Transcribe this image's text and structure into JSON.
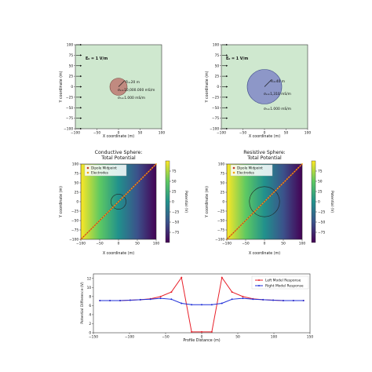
{
  "chart_data": [
    {
      "type": "model-diagram",
      "xlabel": "X coordinate (m)",
      "ylabel": "Y coordinate (m)",
      "xlim": [
        -100,
        100
      ],
      "ylim": [
        -100,
        100
      ],
      "xticks": [
        -100,
        -50,
        0,
        50,
        100
      ],
      "yticks": [
        -100,
        -75,
        -50,
        -25,
        0,
        25,
        50,
        75,
        100
      ],
      "background_color": "#cfe8cf",
      "sphere": {
        "center": [
          0,
          0
        ],
        "radius": 20,
        "color": "#c08a80"
      },
      "annotations": {
        "field": "E₀ = 1 V/m",
        "radius": "R=20 m",
        "sigma_sphere": "σₛ=10,000.000 mS/m",
        "sigma_host": "σₕ=1.000 mS/m"
      }
    },
    {
      "type": "model-diagram",
      "xlabel": "X coordinate (m)",
      "ylabel": "Y coordinate (m)",
      "xlim": [
        -100,
        100
      ],
      "ylim": [
        -100,
        100
      ],
      "xticks": [
        -100,
        -50,
        0,
        50,
        100
      ],
      "yticks": [
        -100,
        -75,
        -50,
        -25,
        0,
        25,
        50,
        75,
        100
      ],
      "background_color": "#cfe8cf",
      "sphere": {
        "center": [
          0,
          0
        ],
        "radius": 40,
        "color": "#8d97c8"
      },
      "annotations": {
        "field": "E₀ = 1 V/m",
        "radius": "R=40 m",
        "sigma_sphere": "σₛ=1,310 mS/m",
        "sigma_host": "σₕ=1.000 mS/m"
      }
    },
    {
      "type": "heatmap",
      "title": "Conductive Sphere:",
      "subtitle": "Total Potential",
      "xlabel": "X coordinate (m)",
      "ylabel": "Y coordinate (m)",
      "xlim": [
        -100,
        100
      ],
      "ylim": [
        -100,
        100
      ],
      "xticks": [
        -100,
        -50,
        0,
        50,
        100
      ],
      "yticks": [
        -100,
        -75,
        -50,
        -25,
        0,
        25,
        50,
        75,
        100
      ],
      "colorbar_label": "Potential (V)",
      "colorbar_ticks": [
        75,
        50,
        25,
        0,
        -25,
        -50,
        -75
      ],
      "colorbar_range": [
        -100,
        100
      ],
      "sphere_radius": 20,
      "legend": [
        "Dipole Midpoint",
        "Electrodes"
      ],
      "profile_line": [
        [
          -100,
          -100
        ],
        [
          100,
          100
        ]
      ]
    },
    {
      "type": "heatmap",
      "title": "Resistive Sphere:",
      "subtitle": "Total Potential",
      "xlabel": "X coordinate (m)",
      "ylabel": "Y coordinate (m)",
      "xlim": [
        -100,
        100
      ],
      "ylim": [
        -100,
        100
      ],
      "xticks": [
        -100,
        -50,
        0,
        50,
        100
      ],
      "yticks": [
        -100,
        -75,
        -50,
        -25,
        0,
        25,
        50,
        75,
        100
      ],
      "colorbar_label": "Potential (V)",
      "colorbar_ticks": [
        75,
        50,
        25,
        0,
        -25,
        -50,
        -75
      ],
      "colorbar_range": [
        -100,
        100
      ],
      "sphere_radius": 40,
      "legend": [
        "Dipole Midpoint",
        "Electrodes"
      ],
      "profile_line": [
        [
          -100,
          -100
        ],
        [
          100,
          100
        ]
      ]
    },
    {
      "type": "line",
      "xlabel": "Profile Distance (m)",
      "ylabel": "Potential Difference (V)",
      "xlim": [
        -150,
        150
      ],
      "ylim": [
        0,
        13
      ],
      "xticks": [
        -150,
        -100,
        -50,
        0,
        50,
        100,
        150
      ],
      "yticks": [
        0,
        2,
        4,
        6,
        8,
        10,
        12
      ],
      "legend_position": "top-right",
      "series": [
        {
          "name": "Left Model Response",
          "color": "#e8202a",
          "x": [
            -141,
            -127,
            -113,
            -99,
            -85,
            -71,
            -57,
            -42,
            -28,
            -14,
            0,
            14,
            28,
            42,
            57,
            71,
            85,
            99,
            113,
            127,
            141
          ],
          "values": [
            7.1,
            7.1,
            7.1,
            7.2,
            7.3,
            7.5,
            8.0,
            9.0,
            12.2,
            0.2,
            0.2,
            0.2,
            12.2,
            9.0,
            8.0,
            7.5,
            7.3,
            7.2,
            7.1,
            7.1,
            7.1
          ]
        },
        {
          "name": "Right Model Response",
          "color": "#1f2fd8",
          "x": [
            -141,
            -127,
            -113,
            -99,
            -85,
            -71,
            -57,
            -42,
            -28,
            -14,
            0,
            14,
            28,
            42,
            57,
            71,
            85,
            99,
            113,
            127,
            141
          ],
          "values": [
            7.1,
            7.1,
            7.1,
            7.2,
            7.3,
            7.4,
            7.6,
            7.4,
            6.5,
            6.2,
            6.2,
            6.2,
            6.5,
            7.4,
            7.6,
            7.4,
            7.3,
            7.2,
            7.1,
            7.1,
            7.1
          ]
        }
      ]
    }
  ]
}
